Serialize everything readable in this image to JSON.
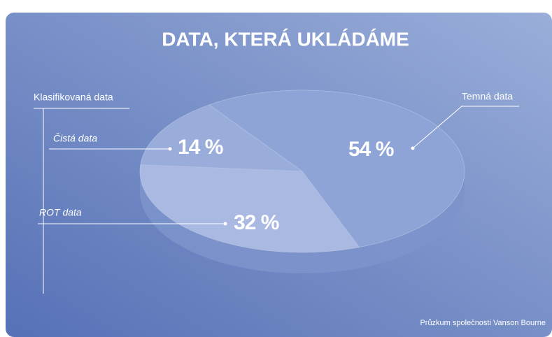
{
  "chart_data": {
    "type": "pie",
    "title": "DATA, KTERÁ UKLÁDÁME",
    "categories": [
      "Temná data",
      "ROT data",
      "Čistá data"
    ],
    "values": [
      54,
      32,
      14
    ],
    "value_labels": [
      "54 %",
      "32 %",
      "14 %"
    ],
    "colors": [
      "#8ea3d6",
      "#aab9e2",
      "#9aadda"
    ],
    "annotations": [
      "Klasifikovaná data"
    ],
    "source": "Průzkum společnosti Vanson Bourne"
  }
}
